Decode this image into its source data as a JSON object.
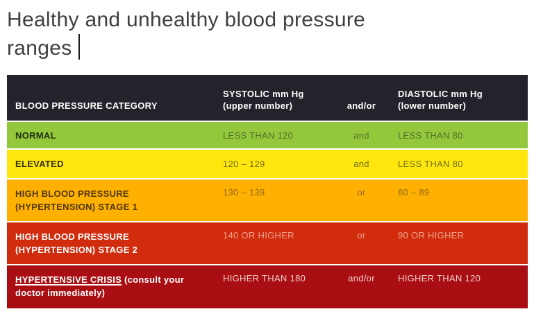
{
  "title": {
    "line1": "Healthy and unhealthy blood pressure",
    "line2": "ranges"
  },
  "table": {
    "header": {
      "bg": "#23232b",
      "text_color": "#ffffff",
      "category": "BLOOD PRESSURE CATEGORY",
      "systolic": "SYSTOLIC mm Hg\n(upper number)",
      "connector": "and/or",
      "diastolic": "DIASTOLIC mm Hg\n(lower number)"
    },
    "rows": [
      {
        "category": "NORMAL",
        "systolic": "LESS THAN 120",
        "connector": "and",
        "diastolic": "LESS THAN 80",
        "bg": "#94c83c",
        "label_color": "#21300f",
        "value_color": "#4e7028"
      },
      {
        "category": "ELEVATED",
        "systolic": "120 – 129",
        "connector": "and",
        "diastolic": "LESS THAN 80",
        "bg": "#ffe60d",
        "label_color": "#33300a",
        "value_color": "#716f15"
      },
      {
        "category": "HIGH BLOOD PRESSURE\n(HYPERTENSION) STAGE 1",
        "systolic": "130 – 139",
        "connector": "or",
        "diastolic": "80 – 89",
        "bg": "#ffb000",
        "label_color": "#4d3708",
        "value_color": "#926a10"
      },
      {
        "category": "HIGH BLOOD PRESSURE\n(HYPERTENSION) STAGE 2",
        "systolic": "140 OR HIGHER",
        "connector": "or",
        "diastolic": "90 OR HIGHER",
        "bg": "#d22c0e",
        "label_color": "#ffffff",
        "value_color": "#eda188"
      },
      {
        "category_main": "HYPERTENSIVE CRISIS",
        "category_note": " (consult your\ndoctor immediately)",
        "systolic": "HIGHER THAN 180",
        "connector": "and/or",
        "diastolic": "HIGHER THAN 120",
        "bg": "#a90e13",
        "label_color": "#ffffff",
        "value_color": "#f1cfc6"
      }
    ]
  }
}
